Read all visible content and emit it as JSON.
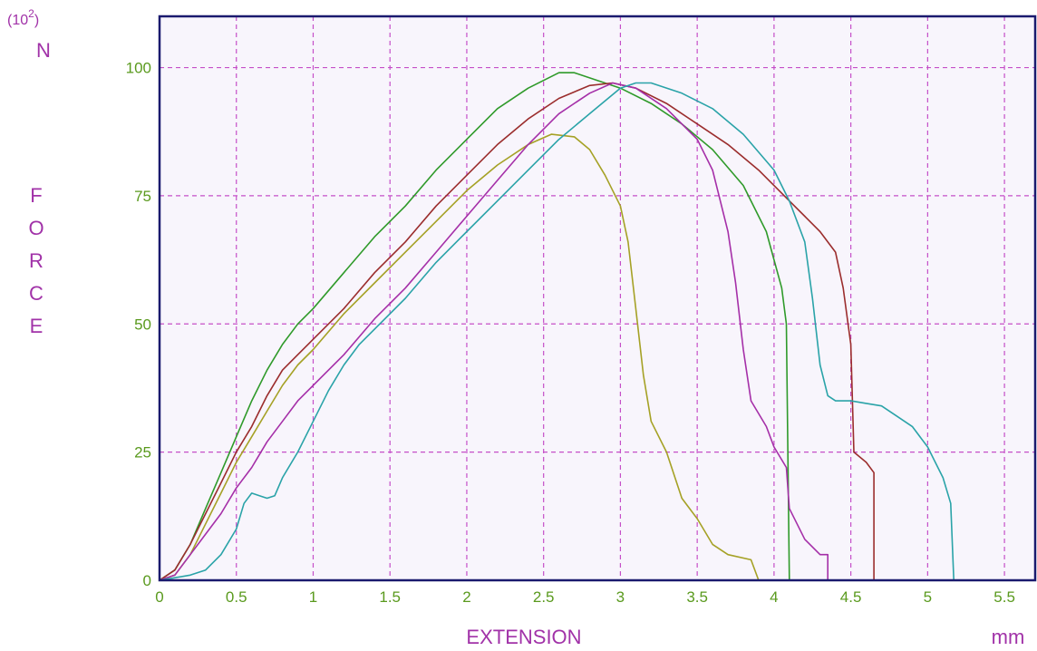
{
  "chart_data": {
    "type": "line",
    "title": "",
    "xlabel": "EXTENSION",
    "xunit": "mm",
    "ylabel": "FORCE",
    "yunit": "N",
    "yscale_label": "(10",
    "yscale_exp": "2",
    "yscale_close": ")",
    "xlim": [
      0,
      5.7
    ],
    "ylim": [
      0,
      110
    ],
    "xticks": [
      0,
      0.5,
      1,
      1.5,
      2,
      2.5,
      3,
      3.5,
      4,
      4.5,
      5,
      5.5
    ],
    "xtick_labels": [
      "0",
      "0.5",
      "1",
      "1.5",
      "2",
      "2.5",
      "3",
      "3.5",
      "4",
      "4.5",
      "5",
      "5.5"
    ],
    "yticks": [
      0,
      25,
      50,
      75,
      100
    ],
    "ytick_labels": [
      "0",
      "25",
      "50",
      "75",
      "100"
    ],
    "grid": true,
    "colors": {
      "background": "#f8f5fc",
      "frame": "#1a1a6e",
      "grid": "#c54fc8",
      "tick_labels": "#5a9a1e",
      "axis_titles": "#a132a8"
    },
    "series": [
      {
        "color": "#2f9a2a",
        "points": [
          [
            0,
            0
          ],
          [
            0.1,
            2
          ],
          [
            0.2,
            7
          ],
          [
            0.3,
            14
          ],
          [
            0.4,
            21
          ],
          [
            0.5,
            28
          ],
          [
            0.6,
            35
          ],
          [
            0.7,
            41
          ],
          [
            0.8,
            46
          ],
          [
            0.9,
            50
          ],
          [
            1.0,
            53
          ],
          [
            1.2,
            60
          ],
          [
            1.4,
            67
          ],
          [
            1.6,
            73
          ],
          [
            1.8,
            80
          ],
          [
            2.0,
            86
          ],
          [
            2.2,
            92
          ],
          [
            2.4,
            96
          ],
          [
            2.6,
            99
          ],
          [
            2.7,
            99
          ],
          [
            2.8,
            98
          ],
          [
            3.0,
            96
          ],
          [
            3.2,
            93
          ],
          [
            3.4,
            89
          ],
          [
            3.6,
            84
          ],
          [
            3.8,
            77
          ],
          [
            3.95,
            68
          ],
          [
            4.05,
            57
          ],
          [
            4.08,
            50
          ],
          [
            4.1,
            0
          ]
        ]
      },
      {
        "color": "#9b2d2d",
        "points": [
          [
            0,
            0
          ],
          [
            0.1,
            2
          ],
          [
            0.2,
            7
          ],
          [
            0.3,
            13
          ],
          [
            0.4,
            19
          ],
          [
            0.5,
            25
          ],
          [
            0.6,
            30
          ],
          [
            0.7,
            36
          ],
          [
            0.8,
            41
          ],
          [
            0.9,
            44
          ],
          [
            1.0,
            47
          ],
          [
            1.2,
            53
          ],
          [
            1.4,
            60
          ],
          [
            1.6,
            66
          ],
          [
            1.8,
            73
          ],
          [
            2.0,
            79
          ],
          [
            2.2,
            85
          ],
          [
            2.4,
            90
          ],
          [
            2.6,
            94
          ],
          [
            2.8,
            96.5
          ],
          [
            2.95,
            97
          ],
          [
            3.1,
            96
          ],
          [
            3.3,
            93
          ],
          [
            3.5,
            89
          ],
          [
            3.7,
            85
          ],
          [
            3.9,
            80
          ],
          [
            4.1,
            74
          ],
          [
            4.2,
            71
          ],
          [
            4.3,
            68
          ],
          [
            4.4,
            64
          ],
          [
            4.45,
            57
          ],
          [
            4.5,
            46
          ],
          [
            4.52,
            25
          ],
          [
            4.6,
            23
          ],
          [
            4.65,
            21
          ],
          [
            4.65,
            0
          ]
        ]
      },
      {
        "color": "#a5a125",
        "points": [
          [
            0,
            0
          ],
          [
            0.1,
            1
          ],
          [
            0.2,
            5
          ],
          [
            0.3,
            11
          ],
          [
            0.4,
            17
          ],
          [
            0.5,
            23
          ],
          [
            0.6,
            28
          ],
          [
            0.7,
            33
          ],
          [
            0.8,
            38
          ],
          [
            0.9,
            42
          ],
          [
            1.0,
            45
          ],
          [
            1.2,
            52
          ],
          [
            1.4,
            58
          ],
          [
            1.6,
            64
          ],
          [
            1.8,
            70
          ],
          [
            2.0,
            76
          ],
          [
            2.2,
            81
          ],
          [
            2.4,
            85
          ],
          [
            2.55,
            87
          ],
          [
            2.7,
            86.5
          ],
          [
            2.8,
            84
          ],
          [
            2.9,
            79
          ],
          [
            3.0,
            73
          ],
          [
            3.05,
            66
          ],
          [
            3.1,
            53
          ],
          [
            3.15,
            40
          ],
          [
            3.2,
            31
          ],
          [
            3.3,
            25
          ],
          [
            3.4,
            16
          ],
          [
            3.5,
            12
          ],
          [
            3.6,
            7
          ],
          [
            3.7,
            5
          ],
          [
            3.85,
            4
          ],
          [
            3.9,
            0
          ]
        ]
      },
      {
        "color": "#a52fa8",
        "points": [
          [
            0,
            0
          ],
          [
            0.1,
            1
          ],
          [
            0.2,
            5
          ],
          [
            0.3,
            9
          ],
          [
            0.4,
            13
          ],
          [
            0.5,
            18
          ],
          [
            0.6,
            22
          ],
          [
            0.7,
            27
          ],
          [
            0.8,
            31
          ],
          [
            0.9,
            35
          ],
          [
            1.0,
            38
          ],
          [
            1.2,
            44
          ],
          [
            1.4,
            51
          ],
          [
            1.6,
            57
          ],
          [
            1.8,
            64
          ],
          [
            2.0,
            71
          ],
          [
            2.2,
            78
          ],
          [
            2.4,
            85
          ],
          [
            2.6,
            91
          ],
          [
            2.8,
            95
          ],
          [
            2.95,
            97
          ],
          [
            3.1,
            96
          ],
          [
            3.3,
            92
          ],
          [
            3.5,
            86
          ],
          [
            3.6,
            80
          ],
          [
            3.7,
            68
          ],
          [
            3.75,
            58
          ],
          [
            3.8,
            45
          ],
          [
            3.85,
            35
          ],
          [
            3.95,
            30
          ],
          [
            4.0,
            26
          ],
          [
            4.08,
            22
          ],
          [
            4.1,
            14
          ],
          [
            4.15,
            11
          ],
          [
            4.2,
            8
          ],
          [
            4.3,
            5
          ],
          [
            4.35,
            5
          ],
          [
            4.35,
            0
          ]
        ]
      },
      {
        "color": "#2aa3a8",
        "points": [
          [
            0,
            0
          ],
          [
            0.1,
            0.5
          ],
          [
            0.2,
            1
          ],
          [
            0.3,
            2
          ],
          [
            0.4,
            5
          ],
          [
            0.5,
            10
          ],
          [
            0.55,
            15
          ],
          [
            0.6,
            17
          ],
          [
            0.65,
            16.5
          ],
          [
            0.7,
            16
          ],
          [
            0.75,
            16.5
          ],
          [
            0.8,
            20
          ],
          [
            0.9,
            25
          ],
          [
            1.0,
            31
          ],
          [
            1.1,
            37
          ],
          [
            1.2,
            42
          ],
          [
            1.3,
            46
          ],
          [
            1.4,
            49
          ],
          [
            1.6,
            55
          ],
          [
            1.8,
            62
          ],
          [
            2.0,
            68
          ],
          [
            2.2,
            74
          ],
          [
            2.4,
            80
          ],
          [
            2.6,
            86
          ],
          [
            2.8,
            91
          ],
          [
            3.0,
            96
          ],
          [
            3.1,
            97
          ],
          [
            3.2,
            97
          ],
          [
            3.4,
            95
          ],
          [
            3.6,
            92
          ],
          [
            3.8,
            87
          ],
          [
            4.0,
            80
          ],
          [
            4.1,
            74
          ],
          [
            4.2,
            66
          ],
          [
            4.25,
            55
          ],
          [
            4.3,
            42
          ],
          [
            4.35,
            36
          ],
          [
            4.4,
            35
          ],
          [
            4.5,
            35
          ],
          [
            4.6,
            34.5
          ],
          [
            4.7,
            34
          ],
          [
            4.8,
            32
          ],
          [
            4.9,
            30
          ],
          [
            5.0,
            26
          ],
          [
            5.05,
            23
          ],
          [
            5.1,
            20
          ],
          [
            5.15,
            15
          ],
          [
            5.17,
            0
          ]
        ]
      }
    ]
  }
}
